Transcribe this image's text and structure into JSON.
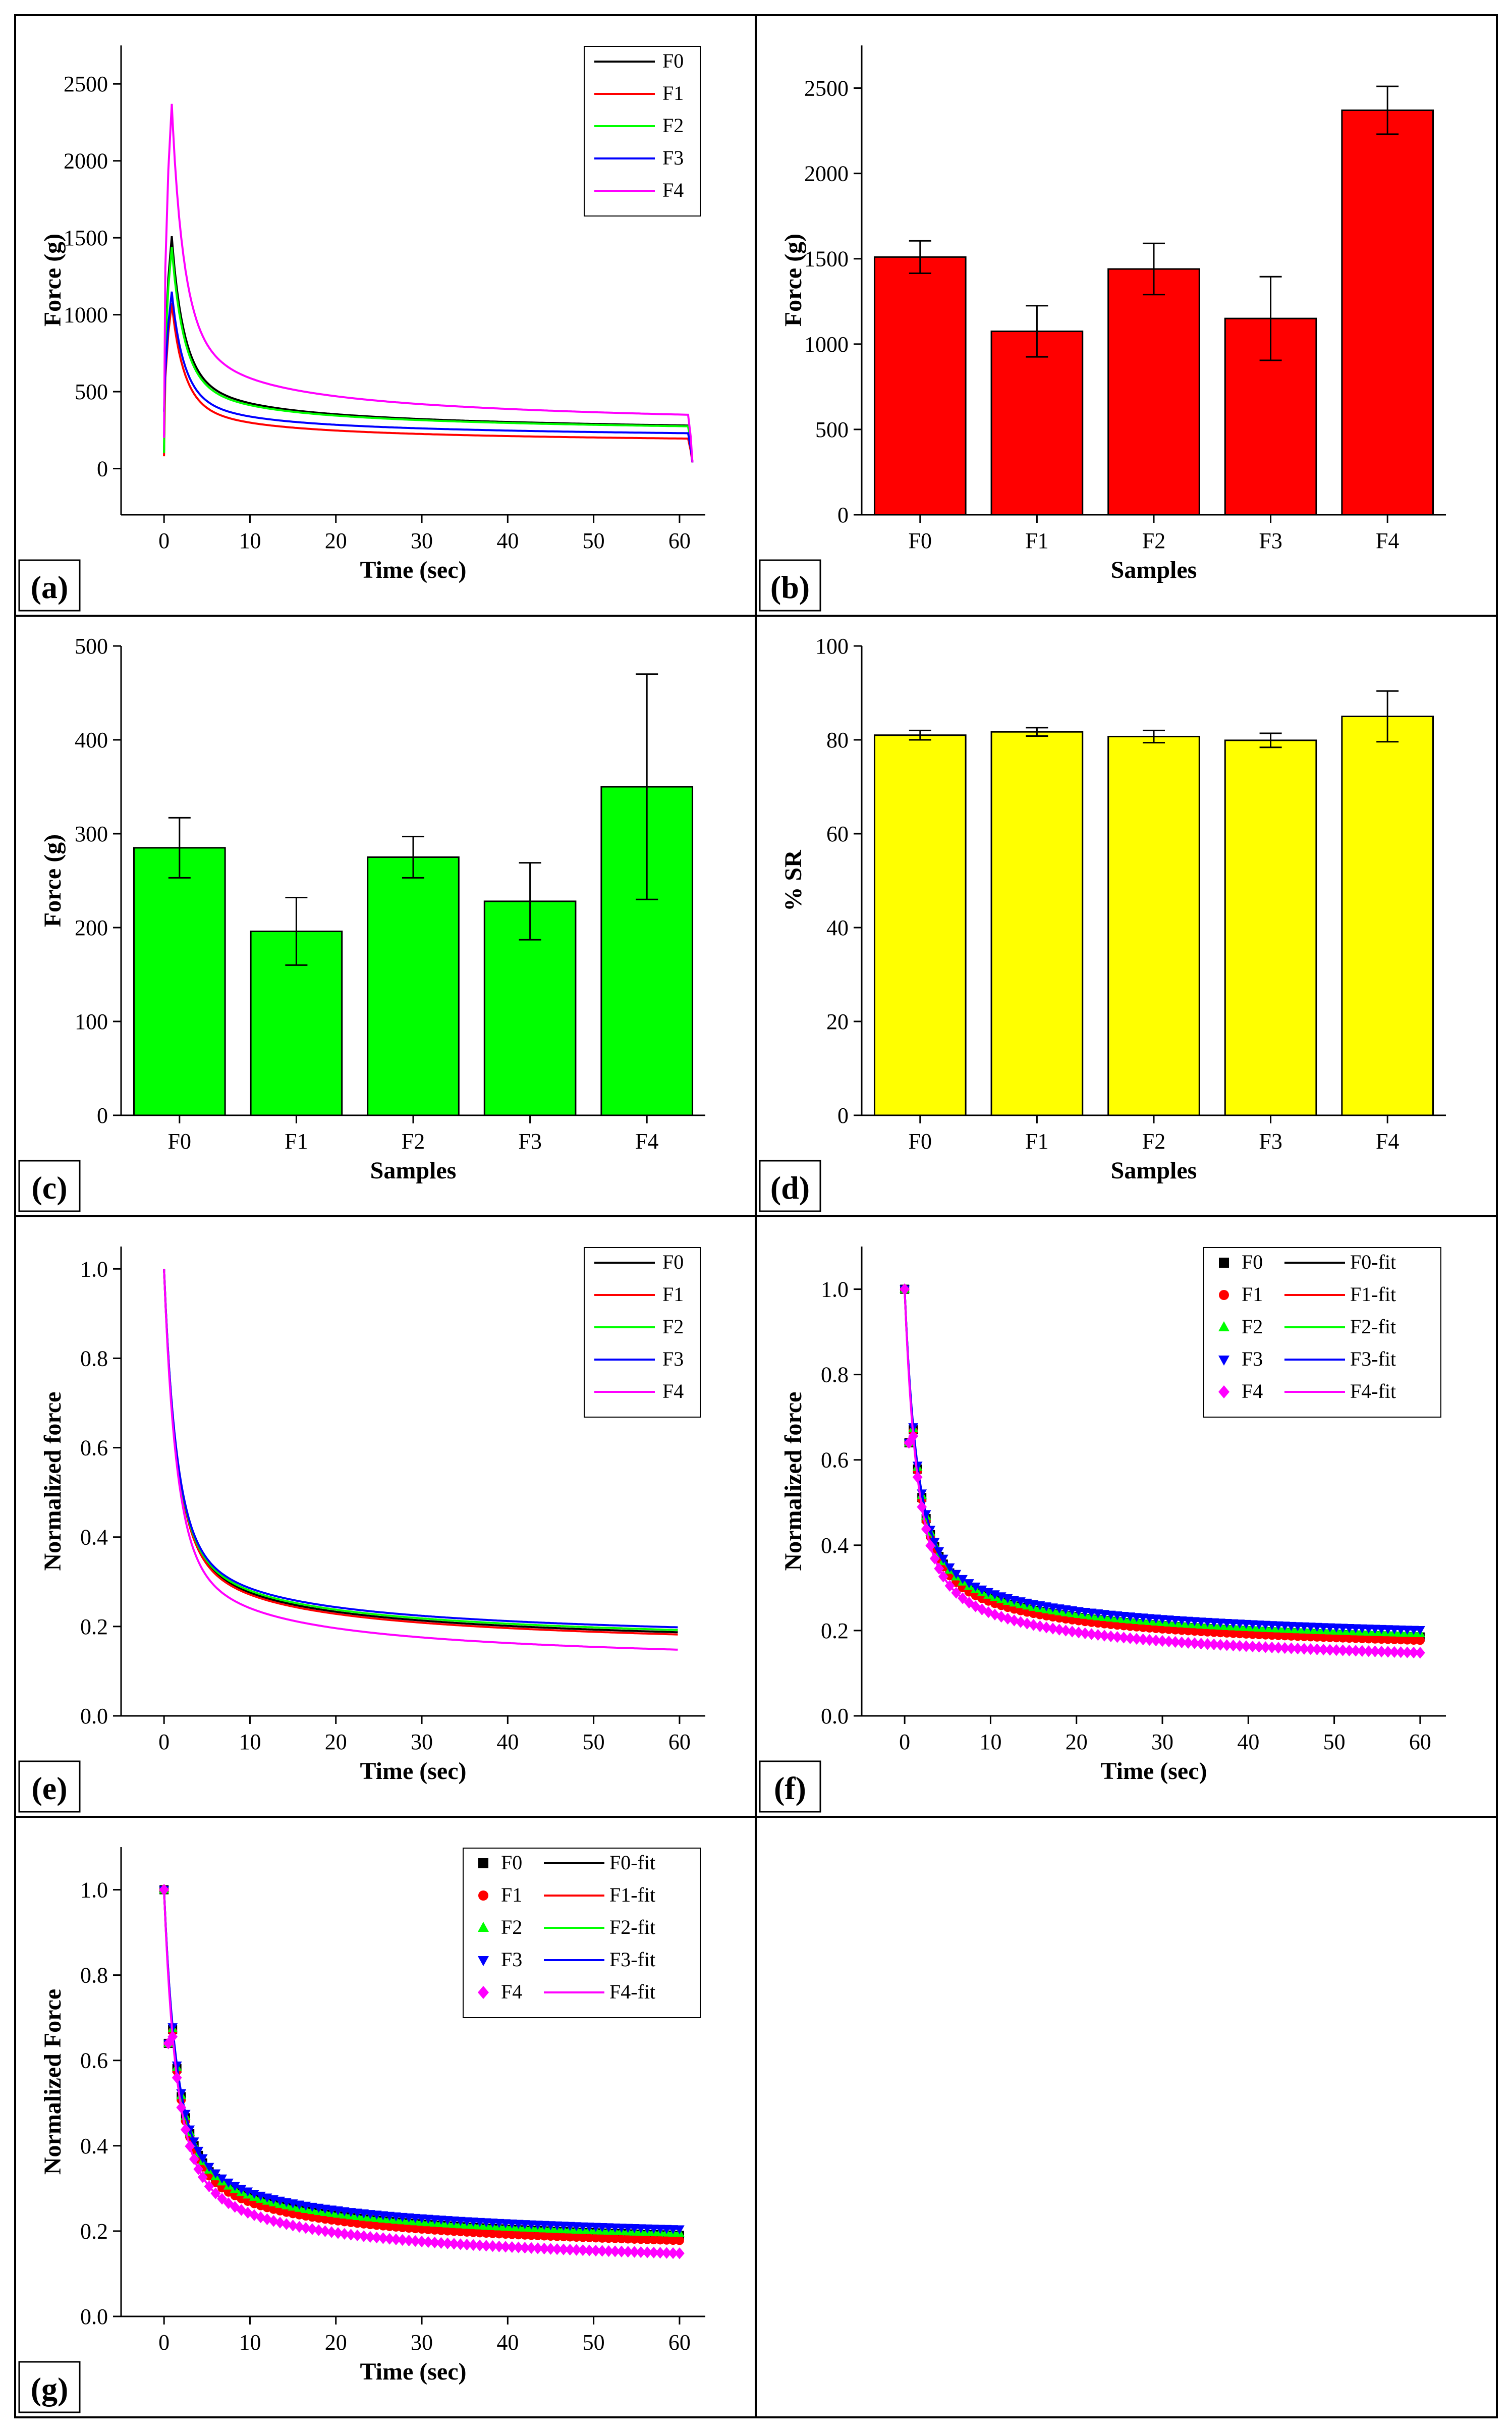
{
  "chart_data": [
    {
      "id": "a",
      "panel_label": "(a)",
      "type": "line",
      "xlabel": "Time (sec)",
      "ylabel": "Force (g)",
      "xlim": [
        -5,
        63
      ],
      "ylim": [
        -300,
        2750
      ],
      "xticks": [
        0,
        10,
        20,
        30,
        40,
        50,
        60
      ],
      "yticks": [
        0,
        500,
        1000,
        1500,
        2000,
        2500
      ],
      "legend_position": "top-right",
      "series": [
        {
          "name": "F0",
          "color": "#000000",
          "peak": 1510,
          "tail": 280,
          "onset": 100
        },
        {
          "name": "F1",
          "color": "#ff0000",
          "peak": 1075,
          "tail": 195,
          "onset": 80
        },
        {
          "name": "F2",
          "color": "#00ff00",
          "peak": 1440,
          "tail": 275,
          "onset": 100
        },
        {
          "name": "F3",
          "color": "#0000ff",
          "peak": 1150,
          "tail": 230,
          "onset": 370
        },
        {
          "name": "F4",
          "color": "#ff00ff",
          "peak": 2370,
          "tail": 350,
          "onset": 200
        }
      ]
    },
    {
      "id": "b",
      "panel_label": "(b)",
      "type": "bar",
      "xlabel": "Samples",
      "ylabel": "Force (g)",
      "ylim": [
        0,
        2750
      ],
      "yticks": [
        0,
        500,
        1000,
        1500,
        2000,
        2500
      ],
      "bar_color": "#ff0000",
      "categories": [
        "F0",
        "F1",
        "F2",
        "F3",
        "F4"
      ],
      "values": [
        1510,
        1075,
        1440,
        1150,
        2370
      ],
      "errors": [
        95,
        150,
        150,
        245,
        140
      ]
    },
    {
      "id": "c",
      "panel_label": "(c)",
      "type": "bar",
      "xlabel": "Samples",
      "ylabel": "Force (g)",
      "ylim": [
        0,
        500
      ],
      "yticks": [
        0,
        100,
        200,
        300,
        400,
        500
      ],
      "bar_color": "#00ff00",
      "categories": [
        "F0",
        "F1",
        "F2",
        "F3",
        "F4"
      ],
      "values": [
        285,
        196,
        275,
        228,
        350
      ],
      "errors": [
        32,
        36,
        22,
        41,
        120
      ]
    },
    {
      "id": "d",
      "panel_label": "(d)",
      "type": "bar",
      "xlabel": "Samples",
      "ylabel": "% SR",
      "ylim": [
        0,
        100
      ],
      "yticks": [
        0,
        20,
        40,
        60,
        80,
        100
      ],
      "bar_color": "#ffff00",
      "categories": [
        "F0",
        "F1",
        "F2",
        "F3",
        "F4"
      ],
      "values": [
        81,
        81.7,
        80.7,
        79.9,
        85
      ],
      "errors": [
        1,
        0.9,
        1.3,
        1.5,
        5.4
      ]
    },
    {
      "id": "e",
      "panel_label": "(e)",
      "type": "line",
      "xlabel": "Time (sec)",
      "ylabel": "Normalized force",
      "xlim": [
        -5,
        63
      ],
      "ylim": [
        0,
        1.05
      ],
      "xticks": [
        0,
        10,
        20,
        30,
        40,
        50,
        60
      ],
      "yticks": [
        0.0,
        0.2,
        0.4,
        0.6,
        0.8,
        1.0
      ],
      "legend_position": "top-right",
      "series": [
        {
          "name": "F0",
          "color": "#000000",
          "end": 0.187
        },
        {
          "name": "F1",
          "color": "#ff0000",
          "end": 0.182
        },
        {
          "name": "F2",
          "color": "#00ff00",
          "end": 0.192
        },
        {
          "name": "F3",
          "color": "#0000ff",
          "end": 0.198
        },
        {
          "name": "F4",
          "color": "#ff00ff",
          "end": 0.148
        }
      ]
    },
    {
      "id": "f",
      "panel_label": "(f)",
      "type": "scatter",
      "xlabel": "Time (sec)",
      "ylabel": "Normalized force",
      "xlim": [
        -5,
        63
      ],
      "ylim": [
        0,
        1.1
      ],
      "xticks": [
        0,
        10,
        20,
        30,
        40,
        50,
        60
      ],
      "yticks": [
        0.0,
        0.2,
        0.4,
        0.6,
        0.8,
        1.0
      ],
      "legend_position": "top-right",
      "series": [
        {
          "name": "F0",
          "fit_name": "F0-fit",
          "color": "#000000",
          "marker": "square",
          "end": 0.185
        },
        {
          "name": "F1",
          "fit_name": "F1-fit",
          "color": "#ff0000",
          "marker": "circle",
          "end": 0.177
        },
        {
          "name": "F2",
          "fit_name": "F2-fit",
          "color": "#00ff00",
          "marker": "triangle-up",
          "end": 0.193
        },
        {
          "name": "F3",
          "fit_name": "F3-fit",
          "color": "#0000ff",
          "marker": "triangle-down",
          "end": 0.202
        },
        {
          "name": "F4",
          "fit_name": "F4-fit",
          "color": "#ff00ff",
          "marker": "diamond",
          "end": 0.148
        }
      ]
    },
    {
      "id": "g",
      "panel_label": "(g)",
      "type": "scatter",
      "xlabel": "Time (sec)",
      "ylabel": "Normalized Force",
      "xlim": [
        -5,
        63
      ],
      "ylim": [
        0,
        1.1
      ],
      "xticks": [
        0,
        10,
        20,
        30,
        40,
        50,
        60
      ],
      "yticks": [
        0.0,
        0.2,
        0.4,
        0.6,
        0.8,
        1.0
      ],
      "legend_position": "top-right",
      "series": [
        {
          "name": "F0",
          "fit_name": "F0-fit",
          "color": "#000000",
          "marker": "square",
          "end": 0.19
        },
        {
          "name": "F1",
          "fit_name": "F1-fit",
          "color": "#ff0000",
          "marker": "circle",
          "end": 0.178
        },
        {
          "name": "F2",
          "fit_name": "F2-fit",
          "color": "#00ff00",
          "marker": "triangle-up",
          "end": 0.195
        },
        {
          "name": "F3",
          "fit_name": "F3-fit",
          "color": "#0000ff",
          "marker": "triangle-down",
          "end": 0.205
        },
        {
          "name": "F4",
          "fit_name": "F4-fit",
          "color": "#ff00ff",
          "marker": "diamond",
          "end": 0.148
        }
      ]
    }
  ]
}
